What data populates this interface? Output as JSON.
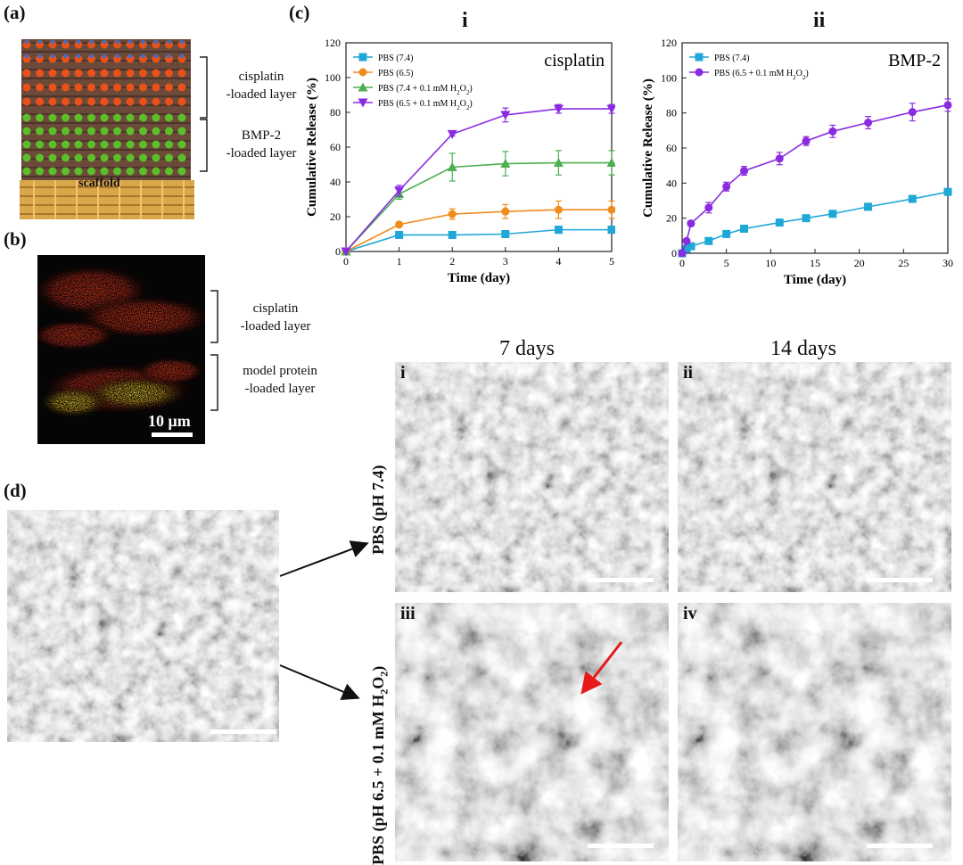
{
  "panels": {
    "a": {
      "label": "(a)",
      "layer_top_line1": "cisplatin",
      "layer_top_line2": "-loaded layer",
      "layer_mid_line1": "BMP-2",
      "layer_mid_line2": "-loaded layer",
      "scaffold": "scaffold"
    },
    "b": {
      "label": "(b)",
      "layer_top_line1": "cisplatin",
      "layer_top_line2": "-loaded layer",
      "layer_bottom_line1": "model protein",
      "layer_bottom_line2": "-loaded layer",
      "scalebar": "10 μm"
    },
    "c": {
      "label": "(c)"
    },
    "d": {
      "label": "(d)",
      "col1": "7 days",
      "col2": "14 days",
      "row1": "PBS (pH 7.4)",
      "row2_prefix": "PBS (pH 6.5 + 0.1 mM H",
      "row2_sub": "2",
      "row2_mid": "O",
      "row2_sub2": "2",
      "row2_suffix": ")",
      "sub_i": "i",
      "sub_ii": "ii",
      "sub_iii": "iii",
      "sub_iv": "iv"
    }
  },
  "chart_data": [
    {
      "type": "line",
      "roman": "i",
      "title": "cisplatin",
      "xlabel": "Time (day)",
      "ylabel": "Cumulative  Release (%)",
      "xlim": [
        0,
        5
      ],
      "ylim": [
        0,
        120
      ],
      "xticks": [
        0,
        1,
        2,
        3,
        4,
        5
      ],
      "yticks": [
        0,
        20,
        40,
        60,
        80,
        100,
        120
      ],
      "legend": "top-left",
      "series": [
        {
          "name": "PBS (7.4)",
          "name_main": "PBS (7.4)",
          "color": "#1fa7d8",
          "marker": "square",
          "x": [
            0,
            1,
            2,
            3,
            4,
            5
          ],
          "y": [
            0,
            9.5,
            9.5,
            10,
            12.5,
            12.5
          ],
          "err": [
            0,
            1,
            1,
            1.5,
            2,
            2
          ]
        },
        {
          "name": "PBS (6.5)",
          "name_main": "PBS (6.5)",
          "color": "#f08c1c",
          "marker": "circle",
          "x": [
            0,
            1,
            2,
            3,
            4,
            5
          ],
          "y": [
            0,
            15.5,
            21.5,
            23,
            24,
            24
          ],
          "err": [
            0,
            1,
            3,
            4,
            5,
            5
          ]
        },
        {
          "name": "PBS (7.4 + 0.1 mM H2O2)",
          "name_main": "PBS (7.4 + 0.1 mM H",
          "name_sub": "2",
          "name_mid": "O",
          "name_sub2": "2",
          "name_end": ")",
          "color": "#4caf50",
          "marker": "triangle-up",
          "x": [
            0,
            1,
            2,
            3,
            4,
            5
          ],
          "y": [
            0,
            33,
            48.5,
            50.5,
            51,
            51
          ],
          "err": [
            0,
            3,
            8,
            7,
            7,
            7
          ]
        },
        {
          "name": "PBS (6.5 + 0.1 mM H2O2)",
          "name_main": "PBS (6.5 + 0.1 mM H",
          "name_sub": "2",
          "name_mid": "O",
          "name_sub2": "2",
          "name_end": ")",
          "color": "#8a2be2",
          "marker": "triangle-down",
          "x": [
            0,
            1,
            2,
            3,
            4,
            5
          ],
          "y": [
            0,
            35,
            67.5,
            78.5,
            82,
            82
          ],
          "err": [
            0,
            3,
            1,
            4,
            2.5,
            2.5
          ]
        }
      ]
    },
    {
      "type": "line",
      "roman": "ii",
      "title": "BMP-2",
      "xlabel": "Time (day)",
      "ylabel": "Cumulative Release (%)",
      "xlim": [
        0,
        30
      ],
      "ylim": [
        0,
        120
      ],
      "xticks": [
        0,
        5,
        10,
        15,
        20,
        25,
        30
      ],
      "yticks": [
        0,
        20,
        40,
        60,
        80,
        100,
        120
      ],
      "legend": "top-left",
      "series": [
        {
          "name": "PBS (7.4)",
          "name_main": "PBS (7.4)",
          "color": "#1fa7d8",
          "marker": "square",
          "x": [
            0,
            0.5,
            1,
            3,
            5,
            7,
            11,
            14,
            17,
            21,
            26,
            30
          ],
          "y": [
            0,
            2.5,
            4,
            7,
            11,
            14,
            17.5,
            20,
            22.5,
            26.5,
            31,
            35
          ],
          "err": [
            0,
            0.5,
            0.8,
            1,
            1,
            1,
            1,
            1,
            1,
            1,
            1,
            1
          ]
        },
        {
          "name": "PBS (6.5 + 0.1 mM H2O2)",
          "name_main": "PBS (6.5 + 0.1 mM H",
          "name_sub": "2",
          "name_mid": "O",
          "name_sub2": "2",
          "name_end": ")",
          "color": "#8a2be2",
          "marker": "circle",
          "x": [
            0,
            0.5,
            1,
            3,
            5,
            7,
            11,
            14,
            17,
            21,
            26,
            30
          ],
          "y": [
            0,
            7,
            17,
            26,
            38,
            47,
            54,
            64,
            69.5,
            74.5,
            80.5,
            84.5
          ],
          "err": [
            0,
            1,
            1.5,
            3,
            2.5,
            2.5,
            3.5,
            2.5,
            3.5,
            3.5,
            5,
            3.5
          ]
        }
      ]
    }
  ]
}
